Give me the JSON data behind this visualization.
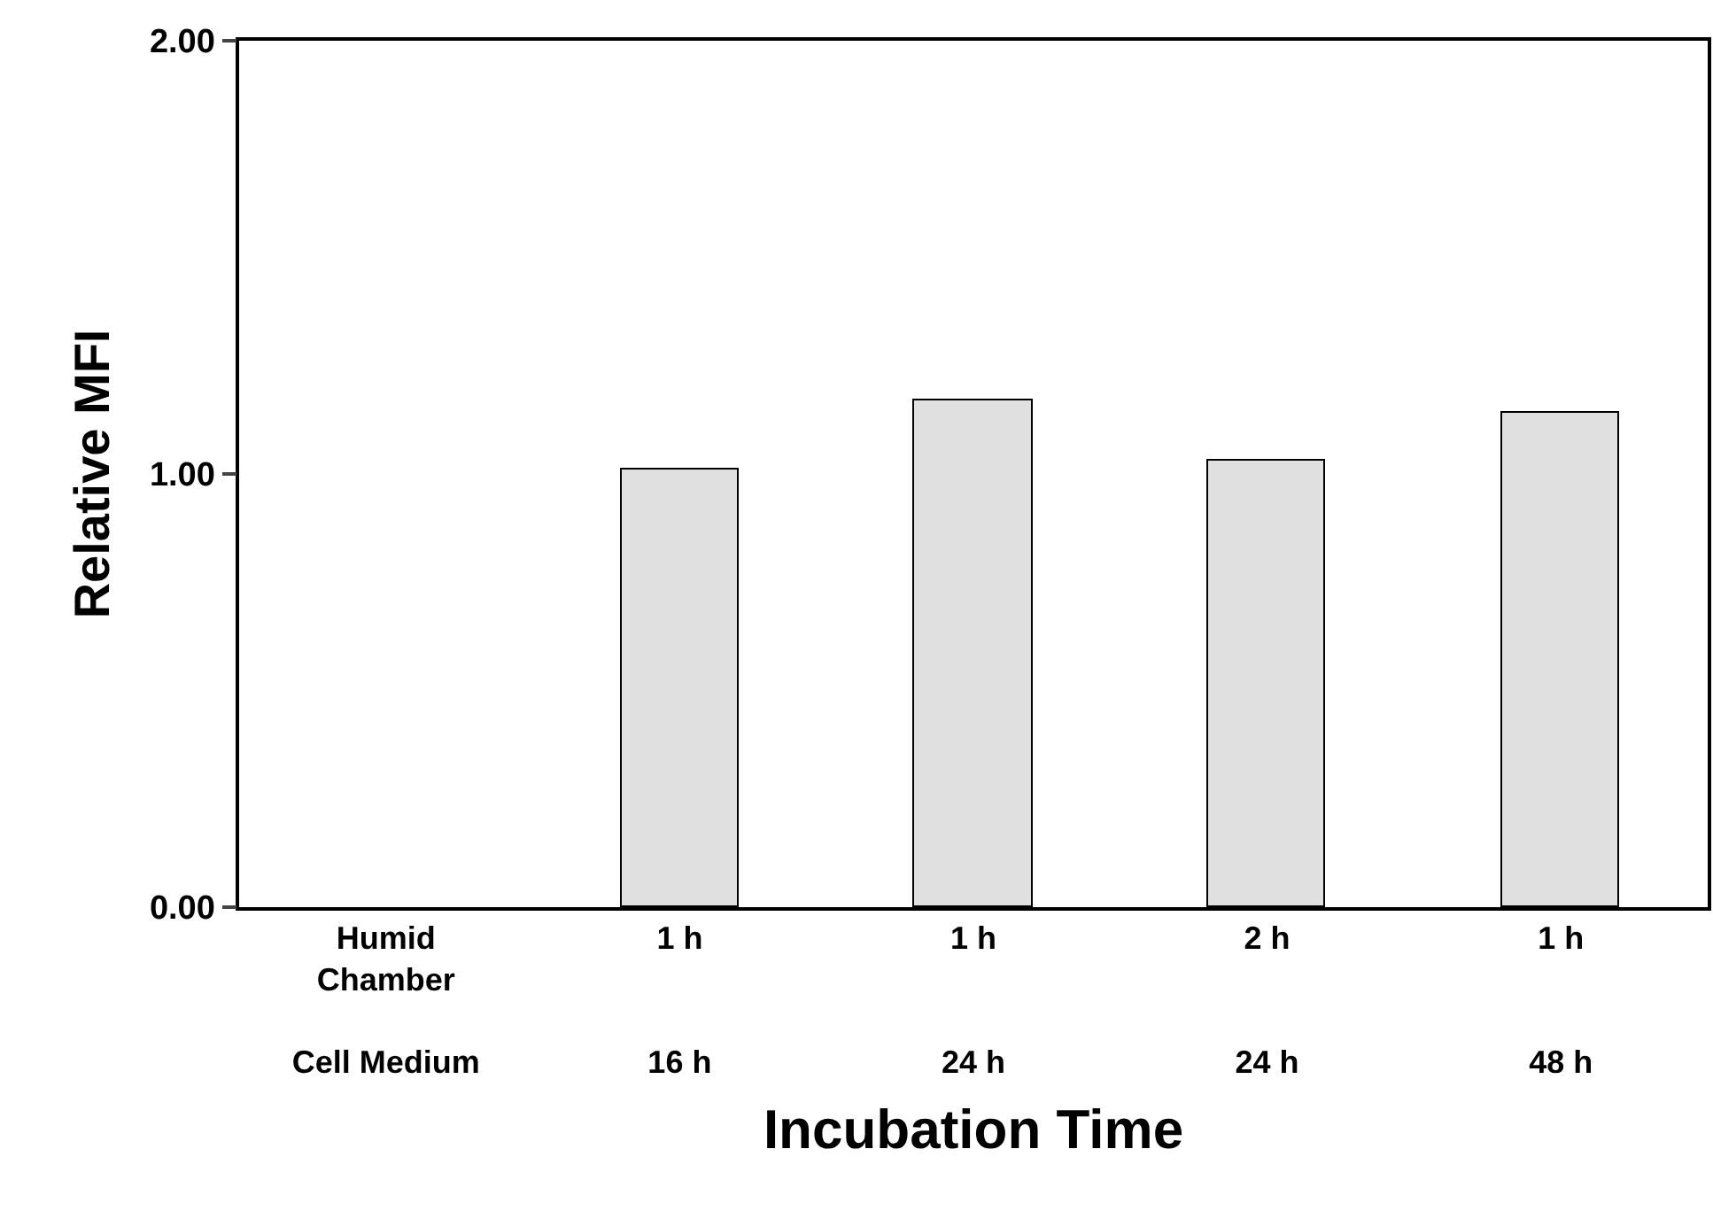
{
  "chart_data": {
    "type": "bar",
    "xlabel": "Incubation Time",
    "ylabel": "Relative MFI",
    "categories": [
      "Humid Chamber\nCell Medium",
      "1 h\n16 h",
      "1 h\n24 h",
      "2 h\n24 h",
      "1 h\n48 h"
    ],
    "values": [
      null,
      1.01,
      1.17,
      1.03,
      1.14
    ],
    "color": "#e0e0e0",
    "ylim": [
      0,
      2
    ],
    "yticks": [
      {
        "value": 0,
        "label": "0.00"
      },
      {
        "value": 1,
        "label": "1.00"
      },
      {
        "value": 2,
        "label": "2.00"
      }
    ],
    "grid": false,
    "legend": false
  }
}
